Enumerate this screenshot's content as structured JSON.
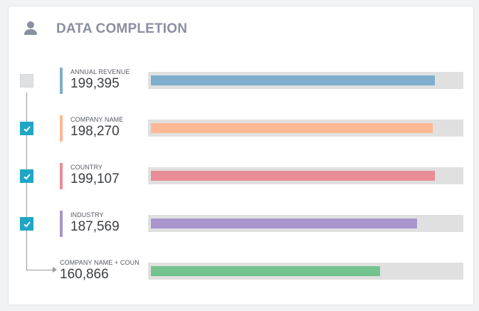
{
  "header": {
    "title": "DATA COMPLETION",
    "icon": "user-icon"
  },
  "rows": [
    {
      "label": "ANNUAL REVENUE",
      "value": "199,395",
      "fraction": 0.9,
      "color": "#7eaecb",
      "checked": false
    },
    {
      "label": "COMPANY NAME",
      "value": "198,270",
      "fraction": 0.894,
      "color": "#fdb895",
      "checked": true
    },
    {
      "label": "COUNTRY",
      "value": "199,107",
      "fraction": 0.9,
      "color": "#e98e96",
      "checked": true
    },
    {
      "label": "INDUSTRY",
      "value": "187,569",
      "fraction": 0.846,
      "color": "#a896cd",
      "checked": true
    },
    {
      "label": "COMPANY NAME + COUN",
      "value": "160,866",
      "fraction": 0.726,
      "color": "#74c38e",
      "checked": null
    }
  ]
}
